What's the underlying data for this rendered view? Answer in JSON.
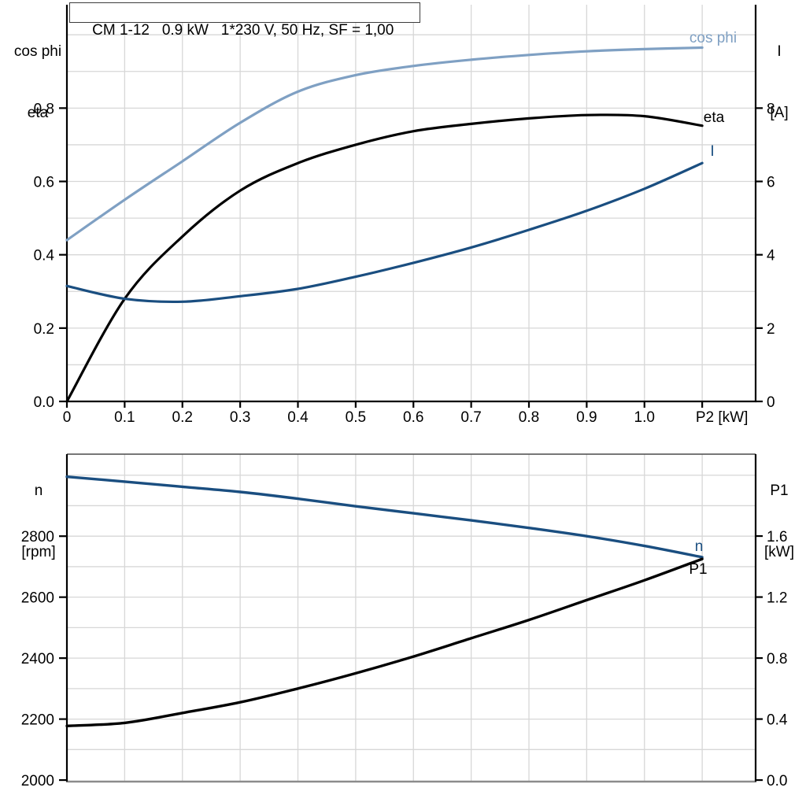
{
  "title_box": {
    "text": "CM 1-12   0.9 kW   1*230 V, 50 Hz, SF = 1,00"
  },
  "colors": {
    "dark_blue": "#1a4e80",
    "light_blue": "#7fa0c3",
    "black": "#000000",
    "grid": "#d7d7d7",
    "axis": "#000000",
    "frame_gray": "#8c8c8c",
    "frame_dark": "#4a4a4a"
  },
  "chart_data": [
    {
      "type": "line",
      "title": "CM 1-12   0.9 kW   1*230 V, 50 Hz, SF = 1,00",
      "xlabel": "P2 [kW]",
      "x": [
        0,
        0.1,
        0.2,
        0.3,
        0.4,
        0.5,
        0.6,
        0.7,
        0.8,
        0.9,
        1.0,
        1.1
      ],
      "x_tick_values": [
        0,
        0.1,
        0.2,
        0.3,
        0.4,
        0.5,
        0.6,
        0.7,
        0.8,
        0.9,
        1.0,
        1.1
      ],
      "x_tick_labels": [
        "0",
        "0.1",
        "0.2",
        "0.3",
        "0.4",
        "0.5",
        "0.6",
        "0.7",
        "0.8",
        "0.9",
        "1.0",
        ""
      ],
      "xlim": [
        0,
        1.19
      ],
      "grid": "on",
      "left_axis": {
        "title_lines": [
          "cos phi",
          "eta"
        ],
        "range": [
          0,
          1.082
        ],
        "ticks": [
          0,
          0.2,
          0.4,
          0.6,
          0.8
        ],
        "tick_labels": [
          "0.0",
          "0.2",
          "0.4",
          "0.6",
          "0.8"
        ],
        "minor_step": 0.1
      },
      "right_axis": {
        "title_lines": [
          "I",
          "[A]"
        ],
        "range": [
          0,
          10.82
        ],
        "ticks": [
          0,
          2,
          4,
          6,
          8
        ],
        "tick_labels": [
          "0",
          "2",
          "4",
          "6",
          "8"
        ],
        "minor_step": 1
      },
      "series": [
        {
          "id": "cos-phi",
          "name": "cos phi",
          "axis": "left",
          "color": "#7fa0c3",
          "values": [
            0.44,
            0.55,
            0.655,
            0.76,
            0.845,
            0.89,
            0.915,
            0.932,
            0.945,
            0.955,
            0.961,
            0.965
          ],
          "label_x": 906,
          "label_y": 54
        },
        {
          "id": "eta",
          "name": "eta",
          "axis": "left",
          "color": "#000000",
          "values": [
            0,
            0.28,
            0.45,
            0.575,
            0.65,
            0.7,
            0.737,
            0.757,
            0.772,
            0.781,
            0.778,
            0.752
          ],
          "label_x": 907,
          "label_y": 155
        },
        {
          "id": "current",
          "name": "I",
          "axis": "right",
          "color": "#1a4e80",
          "values": [
            3.15,
            2.8,
            2.72,
            2.87,
            3.07,
            3.4,
            3.78,
            4.2,
            4.68,
            5.2,
            5.8,
            6.5
          ],
          "label_x": 905,
          "label_y": 198
        }
      ]
    },
    {
      "type": "line",
      "title": "",
      "xlabel": "",
      "x": [
        0,
        0.1,
        0.2,
        0.3,
        0.4,
        0.5,
        0.6,
        0.7,
        0.8,
        0.9,
        1.0,
        1.1
      ],
      "x_tick_values": [],
      "x_tick_labels": [],
      "xlim": [
        0,
        1.19
      ],
      "grid": "on",
      "left_axis": {
        "title_lines": [
          "n",
          "[rpm]"
        ],
        "range": [
          1995,
          3069
        ],
        "ticks": [
          2000,
          2200,
          2400,
          2600,
          2800
        ],
        "tick_labels": [
          "2000",
          "2200",
          "2400",
          "2600",
          "2800"
        ],
        "minor_step": 100
      },
      "right_axis": {
        "title_lines": [
          "P1",
          "[kW]"
        ],
        "range": [
          -0.01,
          2.137
        ],
        "ticks": [
          0,
          0.4,
          0.8,
          1.2,
          1.6
        ],
        "tick_labels": [
          "0.0",
          "0.4",
          "0.8",
          "1.2",
          "1.6"
        ],
        "minor_step": 0.2
      },
      "series": [
        {
          "id": "speed",
          "name": "n",
          "axis": "left",
          "color": "#1a4e80",
          "values": [
            2995,
            2979,
            2962,
            2945,
            2923,
            2898,
            2875,
            2852,
            2827,
            2800,
            2768,
            2731
          ],
          "label_x": 888,
          "label_y": 700
        },
        {
          "id": "input-power",
          "name": "P1",
          "axis": "right",
          "color": "#000000",
          "values": [
            0.355,
            0.375,
            0.44,
            0.51,
            0.6,
            0.7,
            0.81,
            0.93,
            1.05,
            1.18,
            1.31,
            1.45
          ],
          "label_x": 887,
          "label_y": 729
        }
      ]
    }
  ]
}
